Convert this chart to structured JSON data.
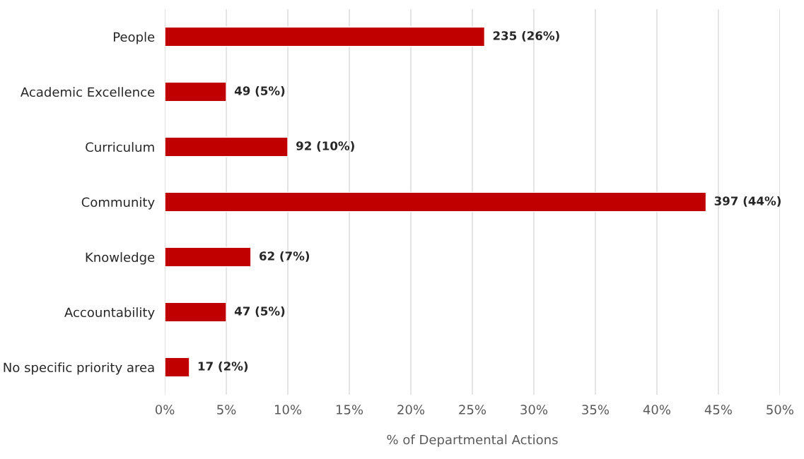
{
  "chart_data": {
    "type": "bar",
    "orientation": "horizontal",
    "xlabel": "% of Departmental Actions",
    "categories": [
      "People",
      "Academic Excellence",
      "Curriculum",
      "Community",
      "Knowledge",
      "Accountability",
      "No specific priority area"
    ],
    "values": [
      26,
      5,
      10,
      44,
      7,
      5,
      2
    ],
    "value_labels": [
      "235 (26%)",
      "49 (5%)",
      "92 (10%)",
      "397 (44%)",
      "62 (7%)",
      "47 (5%)",
      "17 (2%)"
    ],
    "color": "#c00000",
    "xlim": [
      0,
      50
    ],
    "xticks": [
      {
        "value": 0,
        "label": "0%"
      },
      {
        "value": 5,
        "label": "5%"
      },
      {
        "value": 10,
        "label": "10%"
      },
      {
        "value": 15,
        "label": "15%"
      },
      {
        "value": 20,
        "label": "20%"
      },
      {
        "value": 25,
        "label": "25%"
      },
      {
        "value": 30,
        "label": "30%"
      },
      {
        "value": 35,
        "label": "35%"
      },
      {
        "value": 40,
        "label": "40%"
      },
      {
        "value": 45,
        "label": "45%"
      },
      {
        "value": 50,
        "label": "50%"
      }
    ],
    "grid": "x"
  }
}
